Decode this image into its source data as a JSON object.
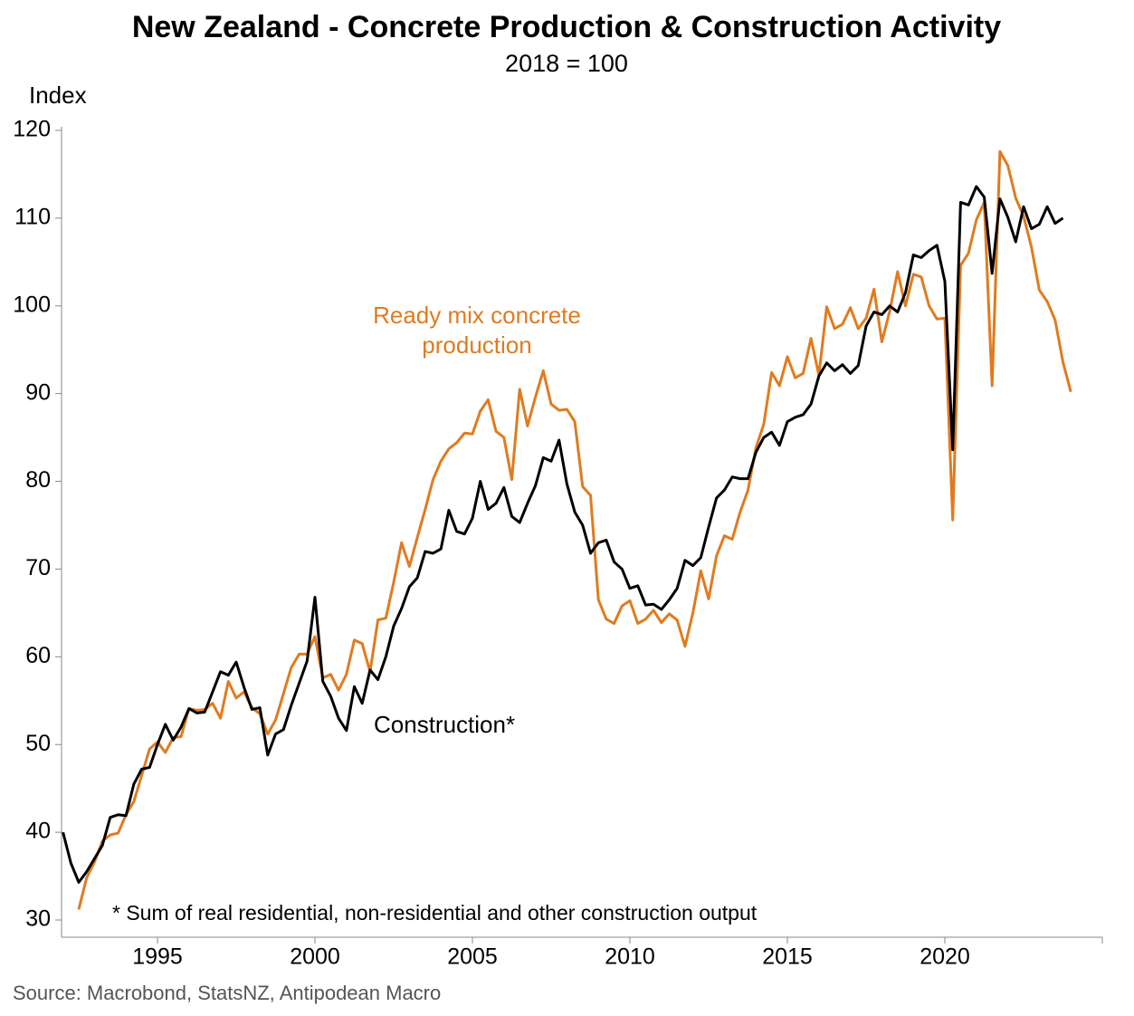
{
  "chart_data": {
    "type": "line",
    "title": "New Zealand - Concrete Production & Construction Activity",
    "subtitle": "2018 = 100",
    "y_label": "Index",
    "footnote": "* Sum of real residential, non-residential and other construction output",
    "source": "Source: Macrobond, StatsNZ, Antipodean Macro",
    "xlim": [
      1992,
      2025
    ],
    "xticks": [
      1995,
      2000,
      2005,
      2010,
      2015,
      2020
    ],
    "ylim": [
      30,
      120
    ],
    "yticks": [
      30,
      40,
      50,
      60,
      70,
      80,
      90,
      100,
      110,
      120
    ],
    "x": [
      1992,
      1992.25,
      1992.5,
      1992.75,
      1993,
      1993.25,
      1993.5,
      1993.75,
      1994,
      1994.25,
      1994.5,
      1994.75,
      1995,
      1995.25,
      1995.5,
      1995.75,
      1996,
      1996.25,
      1996.5,
      1996.75,
      1997,
      1997.25,
      1997.5,
      1997.75,
      1998,
      1998.25,
      1998.5,
      1998.75,
      1999,
      1999.25,
      1999.5,
      1999.75,
      2000,
      2000.25,
      2000.5,
      2000.75,
      2001,
      2001.25,
      2001.5,
      2001.75,
      2002,
      2002.25,
      2002.5,
      2002.75,
      2003,
      2003.25,
      2003.5,
      2003.75,
      2004,
      2004.25,
      2004.5,
      2004.75,
      2005,
      2005.25,
      2005.5,
      2005.75,
      2006,
      2006.25,
      2006.5,
      2006.75,
      2007,
      2007.25,
      2007.5,
      2007.75,
      2008,
      2008.25,
      2008.5,
      2008.75,
      2009,
      2009.25,
      2009.5,
      2009.75,
      2010,
      2010.25,
      2010.5,
      2010.75,
      2011,
      2011.25,
      2011.5,
      2011.75,
      2012,
      2012.25,
      2012.5,
      2012.75,
      2013,
      2013.25,
      2013.5,
      2013.75,
      2014,
      2014.25,
      2014.5,
      2014.75,
      2015,
      2015.25,
      2015.5,
      2015.75,
      2016,
      2016.25,
      2016.5,
      2016.75,
      2017,
      2017.25,
      2017.5,
      2017.75,
      2018,
      2018.25,
      2018.5,
      2018.75,
      2019,
      2019.25,
      2019.5,
      2019.75,
      2020,
      2020.25,
      2020.5,
      2020.75,
      2021,
      2021.25,
      2021.5,
      2021.75,
      2022,
      2022.25,
      2022.5,
      2022.75,
      2023,
      2023.25,
      2023.5,
      2023.75,
      2024
    ],
    "series": [
      {
        "name": "Construction*",
        "color": "#000000",
        "values": [
          40,
          36.5,
          34.3,
          35.5,
          37,
          38.5,
          41.7,
          42,
          41.9,
          45.5,
          47.2,
          47.4,
          50,
          52.3,
          50.5,
          52,
          54.1,
          53.6,
          53.7,
          56,
          58.3,
          57.9,
          59.4,
          56.5,
          54,
          54.2,
          48.8,
          51.2,
          51.7,
          54.5,
          57,
          59.5,
          66.8,
          57.2,
          55.5,
          53,
          51.6,
          56.6,
          54.7,
          58.5,
          57.4,
          60,
          63.5,
          65.5,
          68,
          69,
          72,
          71.8,
          72.3,
          76.7,
          74.3,
          74,
          75.8,
          80,
          76.8,
          77.5,
          79.3,
          76,
          75.3,
          77.5,
          79.5,
          82.7,
          82.3,
          84.7,
          79.7,
          76.5,
          75,
          71.8,
          73,
          73.3,
          70.8,
          70,
          67.8,
          68.1,
          65.9,
          66,
          65.4,
          66.5,
          67.8,
          71,
          70.4,
          71.3,
          74.8,
          78.1,
          79,
          80.5,
          80.3,
          80.3,
          83.3,
          85,
          85.6,
          84.1,
          86.8,
          87.3,
          87.6,
          88.8,
          92,
          93.5,
          92.6,
          93.3,
          92.3,
          93.2,
          97.7,
          99.3,
          99,
          100,
          99.3,
          101.5,
          105.8,
          105.5,
          106.3,
          106.9,
          102.8,
          83.6,
          111.8,
          111.5,
          113.6,
          112.4,
          103.7,
          112.2,
          110.1,
          107.3,
          111.3,
          108.8,
          109.3,
          111.3,
          109.4,
          110,
          null
        ]
      },
      {
        "name": "Ready mix concrete production",
        "color": "#e07b1f",
        "values": [
          null,
          null,
          31.2,
          34.8,
          36.6,
          39,
          39.7,
          39.9,
          42,
          43.5,
          46.5,
          49.5,
          50.3,
          49.1,
          50.8,
          50.9,
          54.1,
          53.9,
          54,
          54.7,
          53,
          57.2,
          55.3,
          56,
          54.2,
          53.5,
          51.2,
          52.8,
          55.8,
          58.8,
          60.3,
          60.3,
          62.3,
          57.6,
          58,
          56.2,
          58,
          61.9,
          61.5,
          58.3,
          64.2,
          64.4,
          68.5,
          73,
          70.3,
          73.6,
          76.8,
          80.2,
          82.3,
          83.7,
          84.4,
          85.5,
          85.4,
          88,
          89.3,
          85.7,
          85,
          80.2,
          90.5,
          86.3,
          89.6,
          92.6,
          88.8,
          88.1,
          88.2,
          86.8,
          79.4,
          78.4,
          66.5,
          64.3,
          63.8,
          65.8,
          66.4,
          63.8,
          64.3,
          65.3,
          63.9,
          64.9,
          64.2,
          61.2,
          65,
          69.8,
          66.6,
          71.5,
          73.8,
          73.4,
          76.5,
          79,
          83.8,
          86.5,
          92.4,
          90.9,
          94.2,
          91.8,
          92.3,
          96.3,
          92.1,
          99.9,
          97.4,
          97.9,
          99.8,
          97.4,
          98.6,
          101.9,
          95.9,
          99.4,
          103.9,
          100,
          103.6,
          103.3,
          100,
          98.5,
          98.6,
          75.6,
          104.6,
          106,
          109.8,
          111.8,
          90.9,
          117.6,
          116,
          112.3,
          110.2,
          106.7,
          101.8,
          100.5,
          98.4,
          93.6,
          90.2
        ]
      }
    ]
  }
}
